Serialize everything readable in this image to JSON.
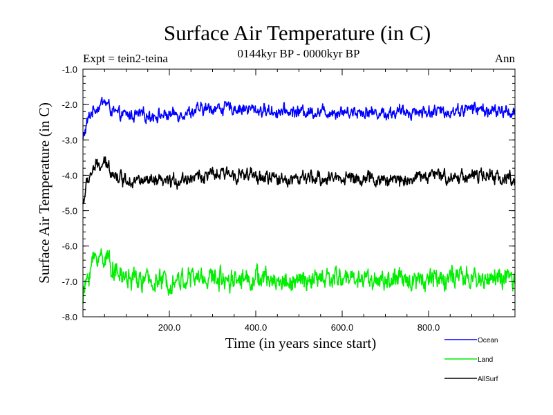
{
  "chart_data": {
    "type": "line",
    "title": "Surface Air Temperature (in C)",
    "subtitle": "0144kyr BP - 0000kyr BP",
    "experiment": "Expt = tein2-teina",
    "season": "Ann",
    "xlabel": "Time (in years since start)",
    "ylabel": "Surface Air Temperature (in C)",
    "xlim": [
      0,
      1000
    ],
    "ylim": [
      -8.0,
      -1.0
    ],
    "x_ticks": [
      200,
      400,
      600,
      800
    ],
    "x_tick_labels": [
      "200.0",
      "400.0",
      "600.0",
      "800.0"
    ],
    "y_ticks": [
      -1.0,
      -2.0,
      -3.0,
      -4.0,
      -5.0,
      -6.0,
      -7.0,
      -8.0
    ],
    "y_tick_labels": [
      "-1.0",
      "-2.0",
      "-3.0",
      "-4.0",
      "-5.0",
      "-6.0",
      "-7.0",
      "-8.0"
    ],
    "series": [
      {
        "name": "Ocean",
        "color": "#0000ff",
        "x": [
          0,
          10,
          20,
          30,
          40,
          50,
          60,
          70,
          80,
          100,
          150,
          200,
          250,
          300,
          350,
          400,
          450,
          500,
          550,
          600,
          650,
          700,
          750,
          800,
          850,
          900,
          950,
          1000
        ],
        "y": [
          -3.0,
          -2.5,
          -2.2,
          -2.1,
          -2.0,
          -1.9,
          -2.05,
          -2.2,
          -2.3,
          -2.3,
          -2.3,
          -2.3,
          -2.2,
          -2.1,
          -2.1,
          -2.15,
          -2.2,
          -2.2,
          -2.2,
          -2.2,
          -2.2,
          -2.25,
          -2.2,
          -2.2,
          -2.2,
          -2.1,
          -2.2,
          -2.2
        ],
        "noise": 0.13
      },
      {
        "name": "Land",
        "color": "#00ee00",
        "x": [
          0,
          10,
          20,
          30,
          40,
          50,
          60,
          70,
          80,
          100,
          150,
          200,
          250,
          300,
          350,
          400,
          450,
          500,
          550,
          600,
          650,
          700,
          750,
          800,
          850,
          900,
          950,
          1000
        ],
        "y": [
          -7.5,
          -6.9,
          -6.5,
          -6.3,
          -6.3,
          -6.3,
          -6.4,
          -6.6,
          -6.8,
          -6.9,
          -7.0,
          -7.0,
          -6.9,
          -6.9,
          -6.9,
          -6.9,
          -7.0,
          -7.0,
          -6.95,
          -6.9,
          -6.9,
          -7.0,
          -6.95,
          -6.9,
          -6.9,
          -6.95,
          -6.9,
          -7.0
        ],
        "noise": 0.22
      },
      {
        "name": "AllSurf",
        "color": "#000000",
        "x": [
          0,
          10,
          20,
          30,
          40,
          50,
          60,
          70,
          80,
          100,
          150,
          200,
          250,
          300,
          350,
          400,
          450,
          500,
          550,
          600,
          650,
          700,
          750,
          800,
          850,
          900,
          950,
          1000
        ],
        "y": [
          -4.8,
          -4.2,
          -3.9,
          -3.75,
          -3.75,
          -3.7,
          -3.75,
          -3.9,
          -4.05,
          -4.1,
          -4.2,
          -4.2,
          -4.05,
          -4.0,
          -3.95,
          -4.05,
          -4.1,
          -4.1,
          -4.1,
          -4.05,
          -4.1,
          -4.15,
          -4.1,
          -4.0,
          -4.05,
          -4.0,
          -4.05,
          -4.1
        ],
        "noise": 0.14
      }
    ],
    "legend": [
      "Ocean",
      "Land",
      "AllSurf"
    ],
    "grid": false
  }
}
